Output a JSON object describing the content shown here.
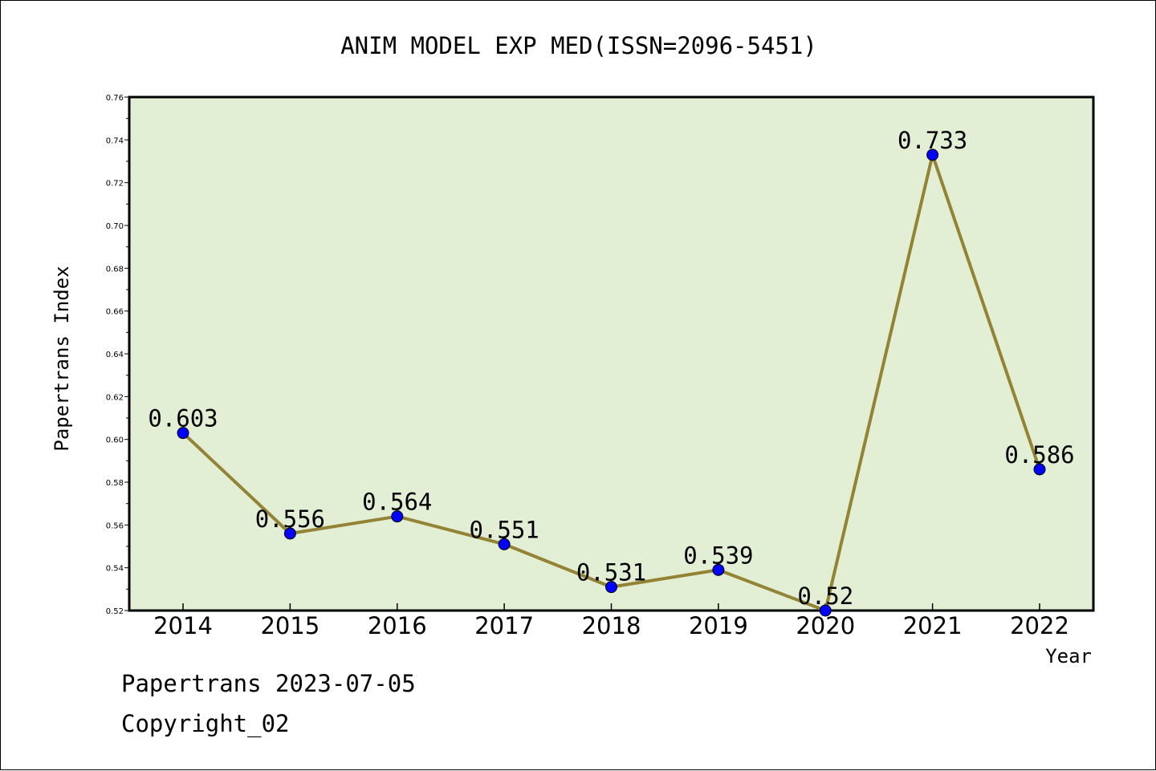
{
  "chart_data": {
    "type": "line",
    "title": "ANIM MODEL EXP MED(ISSN=2096-5451)",
    "xlabel": "Year",
    "ylabel": "Papertrans Index",
    "categories": [
      "2014",
      "2015",
      "2016",
      "2017",
      "2018",
      "2019",
      "2020",
      "2021",
      "2022"
    ],
    "values": [
      0.603,
      0.556,
      0.564,
      0.551,
      0.531,
      0.539,
      0.52,
      0.733,
      0.586
    ],
    "data_labels": [
      "0.603",
      "0.556",
      "0.564",
      "0.551",
      "0.531",
      "0.539",
      "0.52",
      "0.733",
      "0.586"
    ],
    "ylim": [
      0.52,
      0.76
    ],
    "yticks": [
      "0.52",
      "0.54",
      "0.56",
      "0.58",
      "0.60",
      "0.62",
      "0.64",
      "0.66",
      "0.68",
      "0.70",
      "0.72",
      "0.74",
      "0.76"
    ],
    "grid": false,
    "colors": {
      "plot_background": "#e2efd5",
      "line": "#938335",
      "marker": "#0000ff"
    }
  },
  "footer": {
    "date_text": "Papertrans 2023-07-05",
    "copyright_text": "Copyright_02"
  }
}
